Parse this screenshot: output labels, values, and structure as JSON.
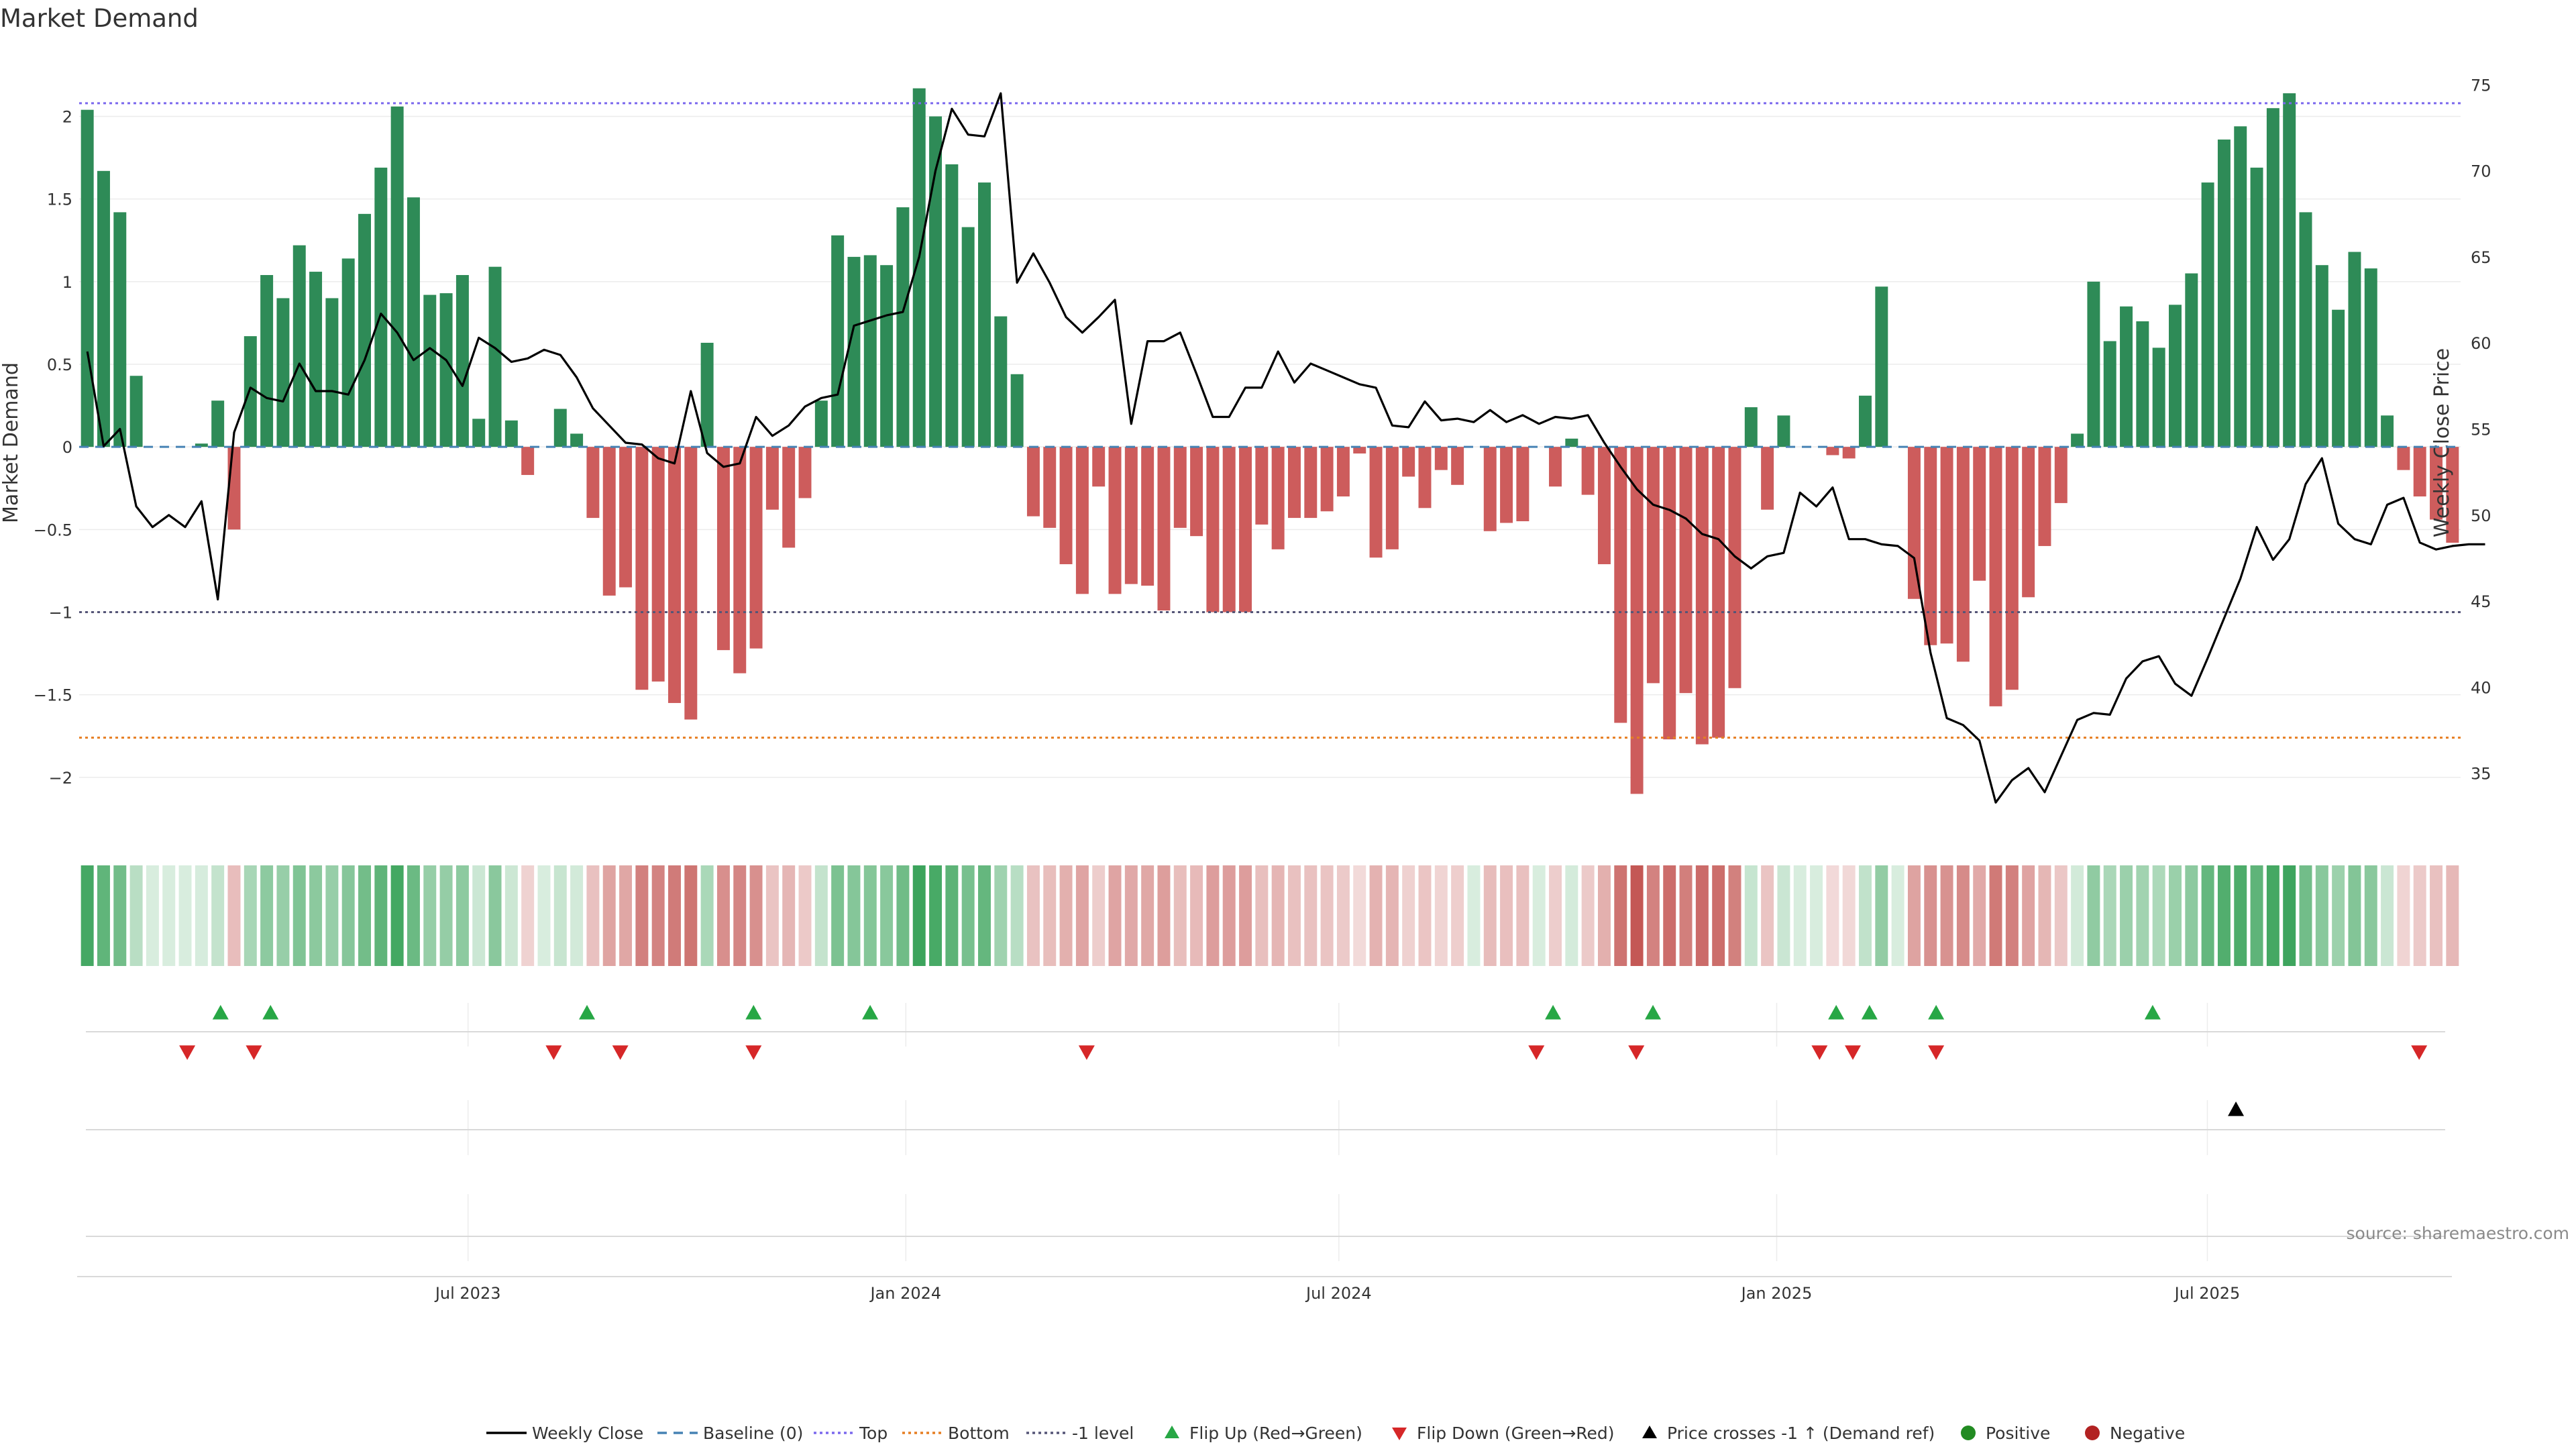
{
  "chart_data": {
    "type": "bar",
    "title": "Market Demand",
    "ylabel": "Market Demand",
    "y2label": "Weekly Close Price",
    "ylim": [
      -2.35,
      2.4
    ],
    "y2lim": [
      31.4,
      77.0
    ],
    "y_ticks": [
      "−2",
      "−1.5",
      "−1",
      "−0.5",
      "0",
      "0.5",
      "1",
      "1.5",
      "2"
    ],
    "y_tick_values": [
      -2,
      -1.5,
      -1,
      -0.5,
      0,
      0.5,
      1,
      1.5,
      2
    ],
    "y2_ticks": [
      "35",
      "40",
      "45",
      "50",
      "55",
      "60",
      "65",
      "70",
      "75"
    ],
    "y2_tick_values": [
      35,
      40,
      45,
      50,
      55,
      60,
      65,
      70,
      75
    ],
    "x_start": "2023-01-22",
    "x_end": "2025-10-12",
    "x_ticks": [
      {
        "date": "2023-07-01",
        "label": "Jul 2023"
      },
      {
        "date": "2024-01-01",
        "label": "Jan 2024"
      },
      {
        "date": "2024-07-01",
        "label": "Jul 2024"
      },
      {
        "date": "2025-01-01",
        "label": "Jan 2025"
      },
      {
        "date": "2025-07-01",
        "label": "Jul 2025"
      }
    ],
    "levels": {
      "top": 2.08,
      "bottom": -1.76,
      "minus_one": -1,
      "baseline": 0
    },
    "demand": [
      2.04,
      1.67,
      1.42,
      0.43,
      0,
      0,
      0,
      0.02,
      0.28,
      -0.5,
      0.67,
      1.04,
      0.9,
      1.22,
      1.06,
      0.9,
      1.14,
      1.41,
      1.69,
      2.06,
      1.51,
      0.92,
      0.93,
      1.04,
      0.17,
      1.09,
      0.16,
      -0.17,
      0,
      0.23,
      0.08,
      -0.43,
      -0.9,
      -0.85,
      -1.47,
      -1.42,
      -1.55,
      -1.65,
      0.63,
      -1.23,
      -1.37,
      -1.22,
      -0.38,
      -0.61,
      -0.31,
      0.28,
      1.28,
      1.15,
      1.16,
      1.1,
      1.45,
      2.17,
      2.0,
      1.71,
      1.33,
      1.6,
      0.79,
      0.44,
      -0.42,
      -0.49,
      -0.71,
      -0.89,
      -0.24,
      -0.89,
      -0.83,
      -0.84,
      -0.99,
      -0.49,
      -0.54,
      -1.0,
      -1.0,
      -1.0,
      -0.47,
      -0.62,
      -0.43,
      -0.43,
      -0.39,
      -0.3,
      -0.04,
      -0.67,
      -0.62,
      -0.18,
      -0.37,
      -0.14,
      -0.23,
      0,
      -0.51,
      -0.46,
      -0.45,
      0,
      -0.24,
      0.05,
      -0.29,
      -0.71,
      -1.67,
      -2.1,
      -1.43,
      -1.77,
      -1.49,
      -1.8,
      -1.76,
      -1.46,
      0.24,
      -0.38,
      0.19,
      0,
      0,
      -0.05,
      -0.07,
      0.31,
      0.97,
      0,
      -0.92,
      -1.2,
      -1.19,
      -1.3,
      -0.81,
      -1.57,
      -1.47,
      -0.91,
      -0.6,
      -0.34,
      0.08,
      1.0,
      0.64,
      0.85,
      0.76,
      0.6,
      0.86,
      1.05,
      1.6,
      1.86,
      1.94,
      1.69,
      2.05,
      2.14,
      1.42,
      1.1,
      0.83,
      1.18,
      1.08,
      0.19,
      -0.14,
      -0.3,
      -0.44,
      -0.58
    ],
    "close": [
      59.5,
      54.0,
      55.0,
      50.5,
      49.3,
      50.0,
      49.3,
      50.8,
      45.1,
      54.8,
      57.4,
      56.8,
      56.6,
      58.8,
      57.2,
      57.2,
      57.0,
      59.0,
      61.7,
      60.6,
      59.0,
      59.7,
      59.0,
      57.5,
      60.3,
      59.7,
      58.9,
      59.1,
      59.6,
      59.3,
      58.0,
      56.2,
      55.2,
      54.2,
      54.1,
      53.3,
      53.0,
      57.2,
      53.6,
      52.8,
      53.0,
      55.7,
      54.6,
      55.2,
      56.3,
      56.8,
      57.0,
      61.0,
      61.3,
      61.6,
      61.8,
      65.0,
      70.0,
      73.6,
      72.1,
      72.0,
      74.5,
      63.5,
      65.2,
      63.5,
      61.5,
      60.6,
      61.5,
      62.5,
      55.3,
      60.1,
      60.1,
      60.6,
      58.2,
      55.7,
      55.7,
      57.4,
      57.4,
      59.5,
      57.7,
      58.8,
      58.4,
      58.0,
      57.6,
      57.4,
      55.2,
      55.1,
      56.6,
      55.5,
      55.6,
      55.4,
      56.1,
      55.4,
      55.8,
      55.3,
      55.7,
      55.6,
      55.8,
      54.2,
      52.8,
      51.5,
      50.6,
      50.3,
      49.8,
      48.9,
      48.6,
      47.6,
      46.9,
      47.6,
      47.8,
      51.3,
      50.5,
      51.6,
      48.6,
      48.6,
      48.3,
      48.2,
      47.5,
      42.0,
      38.2,
      37.8,
      36.9,
      33.3,
      34.6,
      35.3,
      33.9,
      36.0,
      38.1,
      38.5,
      38.4,
      40.5,
      41.5,
      41.8,
      40.2,
      39.5,
      41.7,
      44.0,
      46.3,
      49.3,
      47.4,
      48.6,
      51.8,
      53.3,
      49.5,
      48.6,
      48.3,
      50.6,
      51.0,
      48.4,
      48.0,
      48.2,
      48.3,
      48.3
    ],
    "flip_up": [
      "2023-03-19",
      "2023-04-09",
      "2023-08-20",
      "2023-10-29",
      "2023-12-17",
      "2024-09-29",
      "2024-11-10",
      "2025-01-26",
      "2025-02-09",
      "2025-03-09",
      "2025-06-08"
    ],
    "flip_down": [
      "2023-03-05",
      "2023-04-02",
      "2023-08-06",
      "2023-09-03",
      "2023-10-29",
      "2024-03-17",
      "2024-09-22",
      "2024-11-03",
      "2025-01-19",
      "2025-02-02",
      "2025-03-09",
      "2025-09-28"
    ],
    "price_cross": [
      "2025-07-13"
    ],
    "colors": {
      "positive": "#2e8b57",
      "negative": "#cd5c5c",
      "close": "#000000",
      "baseline": "#4682b4",
      "top": "#7b68ee",
      "bottom": "#e67e22",
      "minus_one": "#555577",
      "flip_up": "#27a745",
      "flip_down": "#d62728",
      "positive_dot": "#228b22",
      "negative_dot": "#b22222"
    },
    "legend": [
      "Weekly Close",
      "Baseline (0)",
      "Top",
      "Bottom",
      "-1 level",
      "Flip Up (Red→Green)",
      "Flip Down (Green→Red)",
      "Price crosses -1 ↑ (Demand ref)",
      "Positive",
      "Negative"
    ],
    "legend_position": "bottom-center",
    "grid": true
  },
  "source": "source: sharemaestro.com"
}
